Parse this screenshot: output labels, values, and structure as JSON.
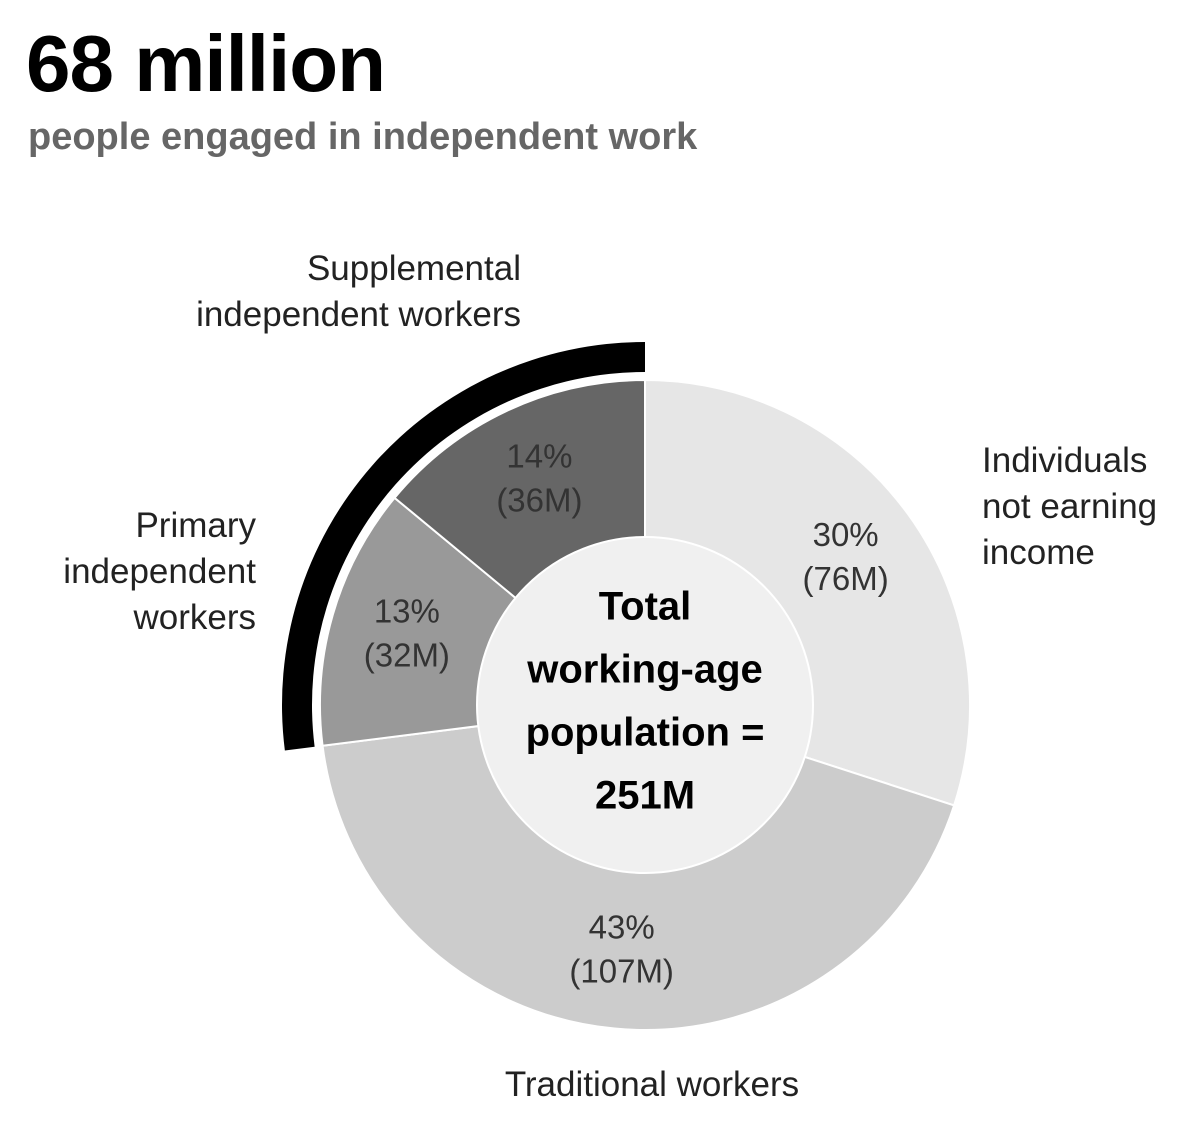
{
  "chart_data": {
    "type": "donut",
    "title": "68 million",
    "subtitle": "people engaged in independent work",
    "categories": [
      "Individuals not earning income",
      "Traditional workers",
      "Primary independent workers",
      "Supplemental independent workers"
    ],
    "values": [
      30,
      43,
      13,
      14
    ],
    "value_labels": [
      "30%",
      "43%",
      "13%",
      "14%"
    ],
    "counts": [
      76,
      107,
      32,
      36
    ],
    "count_labels": [
      "(76M)",
      "(107M)",
      "(32M)",
      "(36M)"
    ],
    "colors": [
      "#e6e6e6",
      "#cccccc",
      "#999999",
      "#666666"
    ],
    "highlight_color": "#000000",
    "center_label": [
      "Total",
      "working-age",
      "population =",
      "251M"
    ]
  }
}
